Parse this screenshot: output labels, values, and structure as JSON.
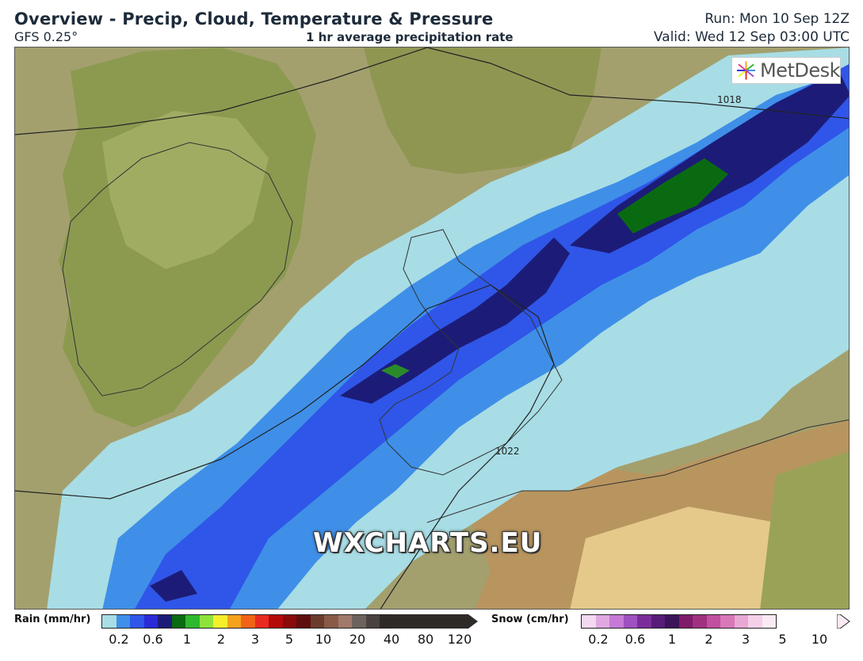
{
  "header": {
    "title": "Overview - Precip, Cloud, Temperature & Pressure",
    "model": "GFS 0.25°",
    "subtitle": "1 hr average precipitation rate",
    "run": "Run: Mon 10 Sep 12Z",
    "valid": "Valid: Wed 12 Sep 03:00 UTC"
  },
  "map": {
    "isobars": [
      "1018",
      "1022"
    ],
    "logo_text": "MetDesk",
    "watermark": "WXCHARTS.EU"
  },
  "legend": {
    "rain": {
      "label": "Rain (mm/hr)",
      "colors": [
        "#a8dde5",
        "#3f8fe8",
        "#2f56e8",
        "#2a2ad8",
        "#1c1c78",
        "#0a6a12",
        "#2fb82f",
        "#8fe23a",
        "#f4ef2a",
        "#f4a21c",
        "#f06318",
        "#e82a20",
        "#b40a0a",
        "#8a0a0a",
        "#5e0e0e",
        "#6a3c2e",
        "#8a5a48",
        "#a07a6a",
        "#6e625c",
        "#4a4240",
        "#2e2a28"
      ],
      "ticks": [
        "0.2",
        "0.6",
        "1",
        "2",
        "3",
        "5",
        "10",
        "20",
        "40",
        "80",
        "120"
      ]
    },
    "snow": {
      "label": "Snow (cm/hr)",
      "colors": [
        "#f2d8f0",
        "#e0a8e0",
        "#c67ad6",
        "#a050c0",
        "#7a2e9a",
        "#581c78",
        "#3c1458",
        "#801a6a",
        "#a03080",
        "#c050a0",
        "#d878b8",
        "#e8a8d4",
        "#f4d0e8",
        "#faeaf4"
      ],
      "ticks": [
        "0.2",
        "0.6",
        "1",
        "2",
        "3",
        "5",
        "10"
      ]
    }
  }
}
